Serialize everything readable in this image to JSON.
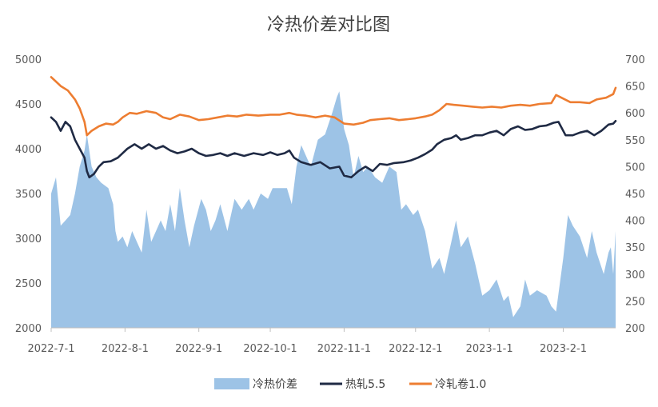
{
  "chart_data": {
    "type": "line",
    "title": "冷热价差对比图",
    "x_tick_labels": [
      "2022-7-1",
      "2022-8-1",
      "2022-9-1",
      "2022-10-1",
      "2022-11-1",
      "2022-12-1",
      "2023-1-1",
      "2023-2-1"
    ],
    "x_ticks": [
      "2022-07-01",
      "2022-08-01",
      "2022-09-01",
      "2022-10-01",
      "2022-11-01",
      "2022-12-01",
      "2023-01-01",
      "2023-02-01"
    ],
    "x_range": [
      "2022-07-01",
      "2023-02-23"
    ],
    "y_left": {
      "min": 2000,
      "max": 5000,
      "ticks": [
        2000,
        2500,
        3000,
        3500,
        4000,
        4500,
        5000
      ]
    },
    "y_right": {
      "min": 200,
      "max": 700,
      "ticks": [
        200,
        250,
        300,
        350,
        400,
        450,
        500,
        550,
        600,
        650,
        700
      ]
    },
    "legend_position": "bottom",
    "grid": false,
    "series": [
      {
        "name": "冷热价差",
        "type": "area",
        "axis": "right",
        "color": "#9DC3E6",
        "points": [
          [
            "2022-07-01",
            450
          ],
          [
            "2022-07-03",
            480
          ],
          [
            "2022-07-05",
            390
          ],
          [
            "2022-07-07",
            400
          ],
          [
            "2022-07-09",
            410
          ],
          [
            "2022-07-11",
            450
          ],
          [
            "2022-07-13",
            500
          ],
          [
            "2022-07-15",
            530
          ],
          [
            "2022-07-16",
            560
          ],
          [
            "2022-07-18",
            500
          ],
          [
            "2022-07-20",
            480
          ],
          [
            "2022-07-22",
            470
          ],
          [
            "2022-07-25",
            460
          ],
          [
            "2022-07-27",
            430
          ],
          [
            "2022-07-28",
            380
          ],
          [
            "2022-07-29",
            360
          ],
          [
            "2022-07-31",
            370
          ],
          [
            "2022-08-02",
            350
          ],
          [
            "2022-08-04",
            380
          ],
          [
            "2022-08-06",
            360
          ],
          [
            "2022-08-08",
            340
          ],
          [
            "2022-08-10",
            420
          ],
          [
            "2022-08-12",
            360
          ],
          [
            "2022-08-14",
            380
          ],
          [
            "2022-08-16",
            400
          ],
          [
            "2022-08-18",
            380
          ],
          [
            "2022-08-20",
            430
          ],
          [
            "2022-08-22",
            380
          ],
          [
            "2022-08-24",
            460
          ],
          [
            "2022-08-26",
            400
          ],
          [
            "2022-08-28",
            350
          ],
          [
            "2022-08-30",
            390
          ],
          [
            "2022-09-02",
            440
          ],
          [
            "2022-09-04",
            420
          ],
          [
            "2022-09-06",
            380
          ],
          [
            "2022-09-08",
            400
          ],
          [
            "2022-09-10",
            430
          ],
          [
            "2022-09-13",
            380
          ],
          [
            "2022-09-16",
            440
          ],
          [
            "2022-09-19",
            420
          ],
          [
            "2022-09-22",
            440
          ],
          [
            "2022-09-24",
            420
          ],
          [
            "2022-09-27",
            450
          ],
          [
            "2022-09-30",
            440
          ],
          [
            "2022-10-02",
            460
          ],
          [
            "2022-10-06",
            460
          ],
          [
            "2022-10-08",
            460
          ],
          [
            "2022-10-10",
            430
          ],
          [
            "2022-10-12",
            500
          ],
          [
            "2022-10-14",
            540
          ],
          [
            "2022-10-18",
            500
          ],
          [
            "2022-10-21",
            550
          ],
          [
            "2022-10-24",
            560
          ],
          [
            "2022-10-27",
            600
          ],
          [
            "2022-10-29",
            630
          ],
          [
            "2022-10-30",
            640
          ],
          [
            "2022-11-01",
            570
          ],
          [
            "2022-11-03",
            540
          ],
          [
            "2022-11-05",
            480
          ],
          [
            "2022-11-07",
            520
          ],
          [
            "2022-11-09",
            490
          ],
          [
            "2022-11-11",
            500
          ],
          [
            "2022-11-14",
            480
          ],
          [
            "2022-11-17",
            470
          ],
          [
            "2022-11-20",
            500
          ],
          [
            "2022-11-23",
            490
          ],
          [
            "2022-11-25",
            420
          ],
          [
            "2022-11-27",
            430
          ],
          [
            "2022-11-30",
            410
          ],
          [
            "2022-12-02",
            420
          ],
          [
            "2022-12-05",
            380
          ],
          [
            "2022-12-08",
            310
          ],
          [
            "2022-12-11",
            330
          ],
          [
            "2022-12-13",
            300
          ],
          [
            "2022-12-16",
            360
          ],
          [
            "2022-12-18",
            400
          ],
          [
            "2022-12-20",
            350
          ],
          [
            "2022-12-23",
            370
          ],
          [
            "2022-12-26",
            320
          ],
          [
            "2022-12-29",
            260
          ],
          [
            "2023-01-01",
            270
          ],
          [
            "2023-01-04",
            290
          ],
          [
            "2023-01-07",
            250
          ],
          [
            "2023-01-09",
            260
          ],
          [
            "2023-01-11",
            220
          ],
          [
            "2023-01-14",
            240
          ],
          [
            "2023-01-16",
            290
          ],
          [
            "2023-01-18",
            260
          ],
          [
            "2023-01-21",
            270
          ],
          [
            "2023-01-25",
            260
          ],
          [
            "2023-01-27",
            240
          ],
          [
            "2023-01-29",
            230
          ],
          [
            "2023-02-01",
            330
          ],
          [
            "2023-02-03",
            410
          ],
          [
            "2023-02-05",
            390
          ],
          [
            "2023-02-08",
            370
          ],
          [
            "2023-02-11",
            330
          ],
          [
            "2023-02-13",
            380
          ],
          [
            "2023-02-15",
            340
          ],
          [
            "2023-02-18",
            300
          ],
          [
            "2023-02-20",
            340
          ],
          [
            "2023-02-21",
            350
          ],
          [
            "2023-02-22",
            300
          ],
          [
            "2023-02-23",
            380
          ]
        ]
      },
      {
        "name": "热轧5.5",
        "type": "line",
        "axis": "left",
        "color": "#1F2A44",
        "points": [
          [
            "2022-07-01",
            4350
          ],
          [
            "2022-07-03",
            4300
          ],
          [
            "2022-07-05",
            4200
          ],
          [
            "2022-07-07",
            4300
          ],
          [
            "2022-07-09",
            4250
          ],
          [
            "2022-07-11",
            4100
          ],
          [
            "2022-07-13",
            4000
          ],
          [
            "2022-07-15",
            3900
          ],
          [
            "2022-07-16",
            3750
          ],
          [
            "2022-07-17",
            3680
          ],
          [
            "2022-07-19",
            3720
          ],
          [
            "2022-07-21",
            3800
          ],
          [
            "2022-07-23",
            3850
          ],
          [
            "2022-07-26",
            3860
          ],
          [
            "2022-07-29",
            3900
          ],
          [
            "2022-07-31",
            3950
          ],
          [
            "2022-08-02",
            4000
          ],
          [
            "2022-08-05",
            4050
          ],
          [
            "2022-08-08",
            4000
          ],
          [
            "2022-08-11",
            4050
          ],
          [
            "2022-08-14",
            4000
          ],
          [
            "2022-08-17",
            4030
          ],
          [
            "2022-08-20",
            3980
          ],
          [
            "2022-08-23",
            3950
          ],
          [
            "2022-08-26",
            3970
          ],
          [
            "2022-08-29",
            4000
          ],
          [
            "2022-09-01",
            3950
          ],
          [
            "2022-09-04",
            3920
          ],
          [
            "2022-09-07",
            3930
          ],
          [
            "2022-09-10",
            3950
          ],
          [
            "2022-09-13",
            3920
          ],
          [
            "2022-09-16",
            3950
          ],
          [
            "2022-09-20",
            3920
          ],
          [
            "2022-09-24",
            3950
          ],
          [
            "2022-09-28",
            3930
          ],
          [
            "2022-10-01",
            3960
          ],
          [
            "2022-10-04",
            3930
          ],
          [
            "2022-10-07",
            3950
          ],
          [
            "2022-10-09",
            3980
          ],
          [
            "2022-10-11",
            3900
          ],
          [
            "2022-10-14",
            3850
          ],
          [
            "2022-10-18",
            3820
          ],
          [
            "2022-10-22",
            3850
          ],
          [
            "2022-10-26",
            3780
          ],
          [
            "2022-10-30",
            3800
          ],
          [
            "2022-11-01",
            3700
          ],
          [
            "2022-11-04",
            3680
          ],
          [
            "2022-11-07",
            3750
          ],
          [
            "2022-11-10",
            3800
          ],
          [
            "2022-11-13",
            3750
          ],
          [
            "2022-11-16",
            3830
          ],
          [
            "2022-11-19",
            3820
          ],
          [
            "2022-11-22",
            3840
          ],
          [
            "2022-11-26",
            3850
          ],
          [
            "2022-11-29",
            3870
          ],
          [
            "2022-12-02",
            3900
          ],
          [
            "2022-12-05",
            3940
          ],
          [
            "2022-12-08",
            3990
          ],
          [
            "2022-12-10",
            4050
          ],
          [
            "2022-12-13",
            4100
          ],
          [
            "2022-12-16",
            4120
          ],
          [
            "2022-12-18",
            4150
          ],
          [
            "2022-12-20",
            4100
          ],
          [
            "2022-12-23",
            4120
          ],
          [
            "2022-12-26",
            4150
          ],
          [
            "2022-12-29",
            4150
          ],
          [
            "2023-01-01",
            4180
          ],
          [
            "2023-01-04",
            4200
          ],
          [
            "2023-01-07",
            4150
          ],
          [
            "2023-01-10",
            4220
          ],
          [
            "2023-01-13",
            4250
          ],
          [
            "2023-01-16",
            4210
          ],
          [
            "2023-01-19",
            4220
          ],
          [
            "2023-01-22",
            4250
          ],
          [
            "2023-01-25",
            4260
          ],
          [
            "2023-01-28",
            4290
          ],
          [
            "2023-01-30",
            4300
          ],
          [
            "2023-02-02",
            4150
          ],
          [
            "2023-02-05",
            4150
          ],
          [
            "2023-02-08",
            4180
          ],
          [
            "2023-02-11",
            4200
          ],
          [
            "2023-02-14",
            4150
          ],
          [
            "2023-02-17",
            4200
          ],
          [
            "2023-02-20",
            4270
          ],
          [
            "2023-02-22",
            4280
          ],
          [
            "2023-02-23",
            4310
          ]
        ]
      },
      {
        "name": "冷轧卷1.0",
        "type": "line",
        "axis": "left",
        "color": "#ED7D31",
        "points": [
          [
            "2022-07-01",
            4800
          ],
          [
            "2022-07-03",
            4750
          ],
          [
            "2022-07-05",
            4700
          ],
          [
            "2022-07-08",
            4650
          ],
          [
            "2022-07-11",
            4550
          ],
          [
            "2022-07-13",
            4450
          ],
          [
            "2022-07-15",
            4300
          ],
          [
            "2022-07-16",
            4150
          ],
          [
            "2022-07-18",
            4200
          ],
          [
            "2022-07-21",
            4250
          ],
          [
            "2022-07-24",
            4280
          ],
          [
            "2022-07-27",
            4270
          ],
          [
            "2022-07-29",
            4300
          ],
          [
            "2022-07-31",
            4350
          ],
          [
            "2022-08-03",
            4400
          ],
          [
            "2022-08-06",
            4390
          ],
          [
            "2022-08-10",
            4420
          ],
          [
            "2022-08-14",
            4400
          ],
          [
            "2022-08-17",
            4350
          ],
          [
            "2022-08-20",
            4330
          ],
          [
            "2022-08-24",
            4380
          ],
          [
            "2022-08-28",
            4360
          ],
          [
            "2022-09-01",
            4320
          ],
          [
            "2022-09-05",
            4330
          ],
          [
            "2022-09-09",
            4350
          ],
          [
            "2022-09-13",
            4370
          ],
          [
            "2022-09-17",
            4360
          ],
          [
            "2022-09-21",
            4380
          ],
          [
            "2022-09-26",
            4370
          ],
          [
            "2022-10-01",
            4380
          ],
          [
            "2022-10-05",
            4380
          ],
          [
            "2022-10-09",
            4400
          ],
          [
            "2022-10-12",
            4380
          ],
          [
            "2022-10-16",
            4370
          ],
          [
            "2022-10-20",
            4350
          ],
          [
            "2022-10-24",
            4370
          ],
          [
            "2022-10-28",
            4350
          ],
          [
            "2022-11-01",
            4280
          ],
          [
            "2022-11-05",
            4270
          ],
          [
            "2022-11-09",
            4290
          ],
          [
            "2022-11-12",
            4320
          ],
          [
            "2022-11-16",
            4330
          ],
          [
            "2022-11-20",
            4340
          ],
          [
            "2022-11-24",
            4320
          ],
          [
            "2022-11-28",
            4330
          ],
          [
            "2022-12-01",
            4340
          ],
          [
            "2022-12-05",
            4360
          ],
          [
            "2022-12-08",
            4380
          ],
          [
            "2022-12-11",
            4430
          ],
          [
            "2022-12-14",
            4500
          ],
          [
            "2022-12-17",
            4490
          ],
          [
            "2022-12-21",
            4480
          ],
          [
            "2022-12-25",
            4470
          ],
          [
            "2022-12-29",
            4460
          ],
          [
            "2023-01-02",
            4470
          ],
          [
            "2023-01-06",
            4460
          ],
          [
            "2023-01-10",
            4480
          ],
          [
            "2023-01-14",
            4490
          ],
          [
            "2023-01-18",
            4480
          ],
          [
            "2023-01-22",
            4500
          ],
          [
            "2023-01-27",
            4510
          ],
          [
            "2023-01-29",
            4600
          ],
          [
            "2023-02-01",
            4560
          ],
          [
            "2023-02-04",
            4520
          ],
          [
            "2023-02-08",
            4520
          ],
          [
            "2023-02-12",
            4510
          ],
          [
            "2023-02-15",
            4550
          ],
          [
            "2023-02-19",
            4570
          ],
          [
            "2023-02-22",
            4610
          ],
          [
            "2023-02-23",
            4680
          ]
        ]
      }
    ]
  }
}
